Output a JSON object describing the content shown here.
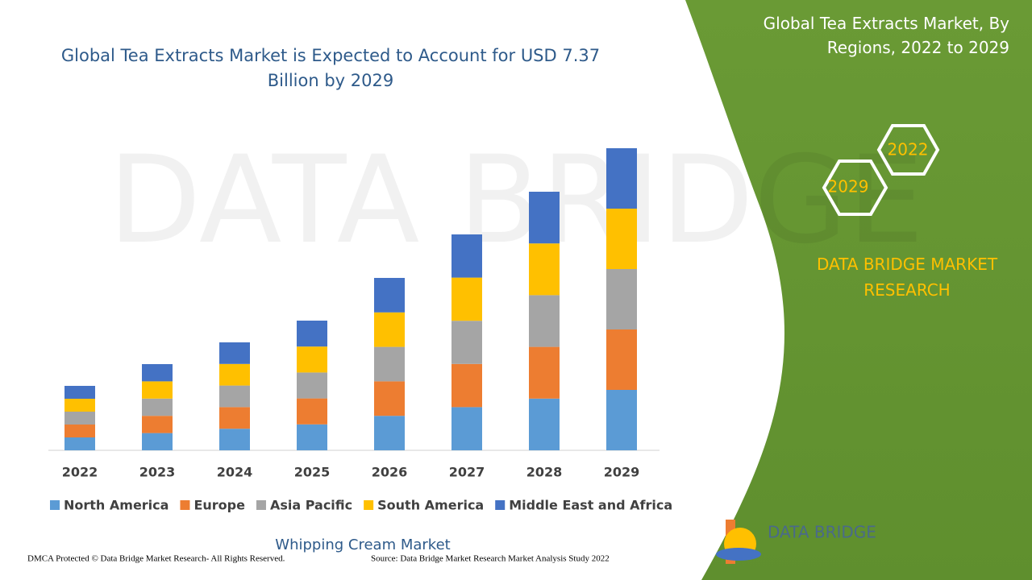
{
  "chart_data": {
    "type": "stacked_bar",
    "title": "Global Tea Extracts Market is Expected to Account for USD 7.37 Billion by 2029",
    "categories": [
      "2022",
      "2023",
      "2024",
      "2025",
      "2026",
      "2027",
      "2028",
      "2029"
    ],
    "series": [
      {
        "name": "North America",
        "color": "#5b9bd5",
        "values": [
          16,
          21.4,
          26.8,
          32.2,
          42.8,
          53.6,
          64.2,
          75
        ]
      },
      {
        "name": "Europe",
        "color": "#ed7d31",
        "values": [
          16,
          21.4,
          26.8,
          32.2,
          42.8,
          53.6,
          64.2,
          75
        ]
      },
      {
        "name": "Asia Pacific",
        "color": "#a5a5a5",
        "values": [
          16,
          21.4,
          26.8,
          32.2,
          42.8,
          53.6,
          64.2,
          75
        ]
      },
      {
        "name": "South America",
        "color": "#ffc000",
        "values": [
          16,
          21.4,
          26.8,
          32.2,
          42.8,
          53.6,
          64.2,
          75
        ]
      },
      {
        "name": "Middle East and Africa",
        "color": "#4472c4",
        "values": [
          16,
          21.4,
          26.8,
          32.2,
          42.8,
          53.6,
          64.2,
          75
        ]
      }
    ],
    "ylim": [
      0,
      400
    ],
    "legend": "bottom"
  },
  "panel": {
    "title": "Global Tea Extracts Market, By Regions, 2022 to 2029",
    "hex_top": "2022",
    "hex_bottom": "2029",
    "brand": "DATA BRIDGE MARKET RESEARCH"
  },
  "footer": {
    "link": "Whipping Cream Market",
    "dmca": "DMCA Protected © Data Bridge Market Research- All Rights Reserved.",
    "source": "Source: Data Bridge Market Research Market Analysis Study 2022",
    "logo": "DATA BRIDGE"
  }
}
